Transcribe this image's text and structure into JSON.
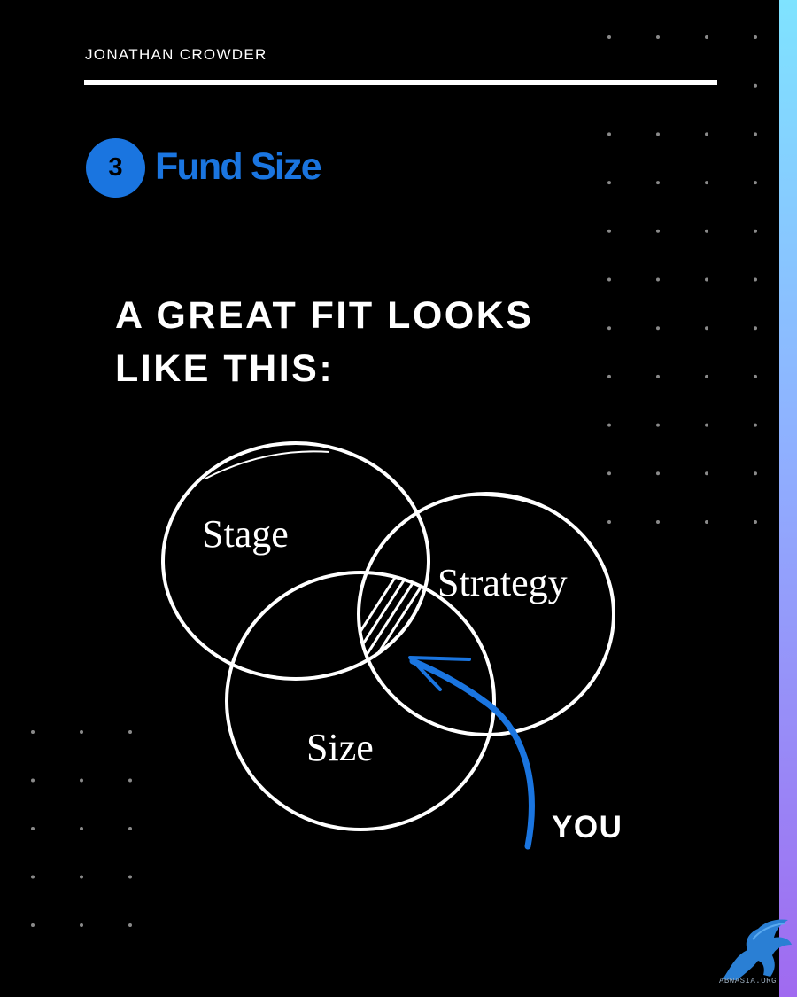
{
  "header": {
    "author": "JONATHAN CROWDER"
  },
  "section": {
    "number": "3",
    "title": "Fund Size"
  },
  "headline": {
    "line1": "A GREAT FIT LOOKS",
    "line2": "LIKE THIS:"
  },
  "venn": {
    "labels": {
      "stage": "Stage",
      "strategy": "Strategy",
      "size": "Size"
    },
    "pointer_label": "YOU"
  },
  "watermark": {
    "text": "ABWASIA.ORG"
  },
  "colors": {
    "background": "#000000",
    "accent": "#1a75e0",
    "text": "#ffffff",
    "side_gradient_top": "#7fe3ff",
    "side_gradient_bottom": "#a06af0"
  }
}
